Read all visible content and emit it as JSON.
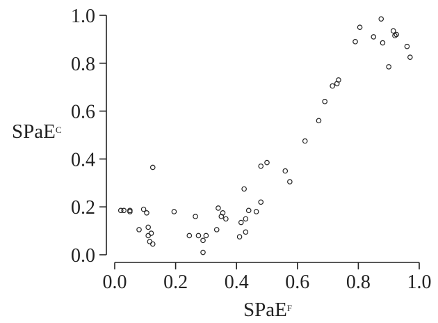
{
  "chart_data": {
    "type": "scatter",
    "xlabel": "SPaE",
    "xlabel_superscript": "F",
    "ylabel": "SPaE",
    "ylabel_superscript": "C",
    "xlim": [
      0.0,
      1.0
    ],
    "ylim": [
      0.0,
      1.0
    ],
    "x_ticks": [
      "0.0",
      "0.2",
      "0.4",
      "0.6",
      "0.8",
      "1.0"
    ],
    "y_ticks": [
      "0.0",
      "0.2",
      "0.4",
      "0.6",
      "0.8",
      "1.0"
    ],
    "grid": false,
    "legend": "none",
    "marker": "open-circle",
    "series": [
      {
        "points": [
          [
            0.02,
            0.185
          ],
          [
            0.03,
            0.185
          ],
          [
            0.05,
            0.185
          ],
          [
            0.05,
            0.18
          ],
          [
            0.08,
            0.105
          ],
          [
            0.095,
            0.19
          ],
          [
            0.105,
            0.175
          ],
          [
            0.11,
            0.08
          ],
          [
            0.11,
            0.115
          ],
          [
            0.12,
            0.09
          ],
          [
            0.115,
            0.055
          ],
          [
            0.125,
            0.045
          ],
          [
            0.125,
            0.365
          ],
          [
            0.195,
            0.18
          ],
          [
            0.245,
            0.08
          ],
          [
            0.265,
            0.16
          ],
          [
            0.275,
            0.08
          ],
          [
            0.29,
            0.01
          ],
          [
            0.29,
            0.06
          ],
          [
            0.3,
            0.08
          ],
          [
            0.335,
            0.105
          ],
          [
            0.34,
            0.195
          ],
          [
            0.355,
            0.175
          ],
          [
            0.35,
            0.16
          ],
          [
            0.365,
            0.15
          ],
          [
            0.41,
            0.075
          ],
          [
            0.415,
            0.135
          ],
          [
            0.425,
            0.275
          ],
          [
            0.43,
            0.095
          ],
          [
            0.43,
            0.15
          ],
          [
            0.44,
            0.185
          ],
          [
            0.465,
            0.18
          ],
          [
            0.48,
            0.22
          ],
          [
            0.48,
            0.37
          ],
          [
            0.5,
            0.385
          ],
          [
            0.56,
            0.35
          ],
          [
            0.575,
            0.305
          ],
          [
            0.625,
            0.475
          ],
          [
            0.67,
            0.56
          ],
          [
            0.69,
            0.64
          ],
          [
            0.715,
            0.705
          ],
          [
            0.73,
            0.715
          ],
          [
            0.735,
            0.73
          ],
          [
            0.79,
            0.89
          ],
          [
            0.805,
            0.95
          ],
          [
            0.85,
            0.91
          ],
          [
            0.875,
            0.985
          ],
          [
            0.88,
            0.885
          ],
          [
            0.9,
            0.785
          ],
          [
            0.915,
            0.935
          ],
          [
            0.92,
            0.915
          ],
          [
            0.925,
            0.92
          ],
          [
            0.96,
            0.87
          ],
          [
            0.97,
            0.825
          ]
        ]
      }
    ]
  }
}
